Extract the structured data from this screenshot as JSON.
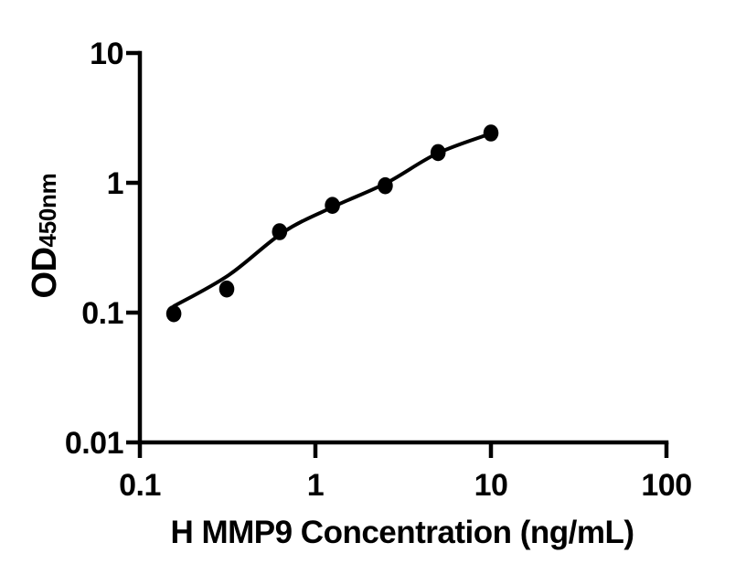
{
  "page": {
    "background_color": "#ffffff",
    "ink_color": "#000000"
  },
  "chart_data": {
    "type": "scatter",
    "title": "",
    "xlabel": "H MMP9 Concentration (ng/mL)",
    "ylabel": "OD",
    "ylabel_sub": "450nm",
    "x_scale": "log",
    "y_scale": "log",
    "xlim": [
      0.1,
      100
    ],
    "ylim": [
      0.01,
      10
    ],
    "grid": false,
    "legend": false,
    "marker": "filled-circle",
    "marker_color": "#000000",
    "line_color": "#000000",
    "x_ticks": [
      {
        "v": 0.1,
        "label": "0.1"
      },
      {
        "v": 1,
        "label": "1"
      },
      {
        "v": 10,
        "label": "10"
      },
      {
        "v": 100,
        "label": "100"
      }
    ],
    "y_ticks": [
      {
        "v": 10,
        "label": "10"
      },
      {
        "v": 1,
        "label": "1"
      },
      {
        "v": 0.1,
        "label": "0.1"
      },
      {
        "v": 0.01,
        "label": "0.01"
      }
    ],
    "points": [
      {
        "x": 0.156,
        "y": 0.098
      },
      {
        "x": 0.3125,
        "y": 0.152
      },
      {
        "x": 0.625,
        "y": 0.42
      },
      {
        "x": 1.25,
        "y": 0.67
      },
      {
        "x": 2.5,
        "y": 0.95
      },
      {
        "x": 5,
        "y": 1.71
      },
      {
        "x": 10,
        "y": 2.42
      }
    ],
    "fit_curve": [
      {
        "x": 0.156,
        "y": 0.112
      },
      {
        "x": 0.32,
        "y": 0.194
      },
      {
        "x": 0.657,
        "y": 0.417
      },
      {
        "x": 1.271,
        "y": 0.656
      },
      {
        "x": 2.548,
        "y": 1.0
      },
      {
        "x": 4.93,
        "y": 1.68
      },
      {
        "x": 10.0,
        "y": 2.4
      }
    ]
  }
}
